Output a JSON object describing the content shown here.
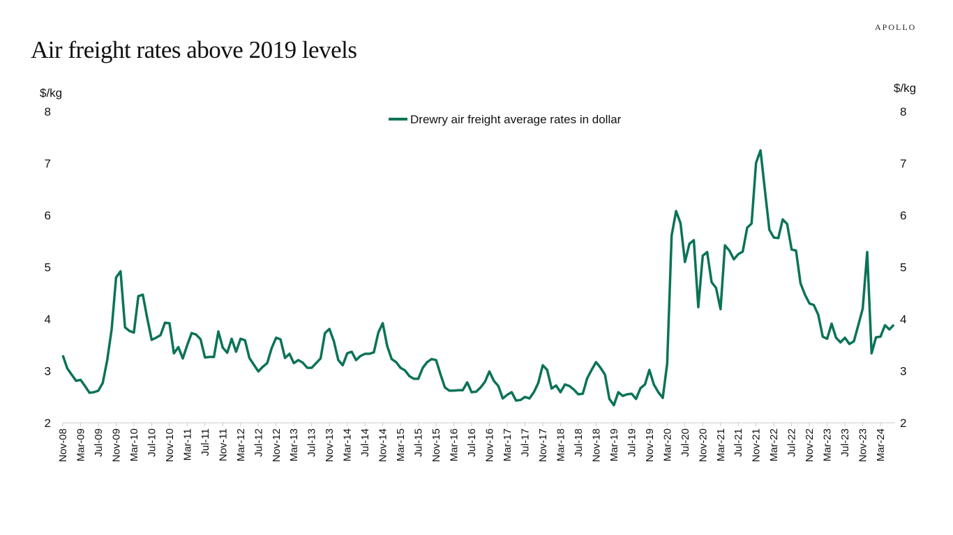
{
  "header": {
    "title": "Air freight rates above 2019 levels",
    "logo": "APOLLO"
  },
  "chart_data": {
    "type": "line",
    "title": "Air freight rates above 2019 levels",
    "ylabel_left": "$/kg",
    "ylabel_right": "$/kg",
    "ylim": [
      2,
      8
    ],
    "yticks": [
      "2",
      "3",
      "4",
      "5",
      "6",
      "7",
      "8"
    ],
    "start_month": "Nov-08",
    "end_month": "May-24",
    "frequency": "monthly",
    "x_tick_labels": [
      "Nov-08",
      "Mar-09",
      "Jul-09",
      "Nov-09",
      "Mar-10",
      "Jul-10",
      "Nov-10",
      "Mar-11",
      "Jul-11",
      "Nov-11",
      "Mar-12",
      "Jul-12",
      "Nov-12",
      "Mar-13",
      "Jul-13",
      "Nov-13",
      "Mar-14",
      "Jul-14",
      "Nov-14",
      "Mar-15",
      "Jul-15",
      "Nov-15",
      "Mar-16",
      "Jul-16",
      "Nov-16",
      "Mar-17",
      "Jul-17",
      "Nov-17",
      "Mar-18",
      "Jul-18",
      "Nov-18",
      "Mar-19",
      "Jul-19",
      "Nov-19",
      "Mar-20",
      "Jul-20",
      "Nov-20",
      "Mar-21",
      "Jul-21",
      "Nov-21",
      "Mar-22",
      "Jul-22",
      "Nov-22",
      "Mar-23",
      "Jul-23",
      "Nov-23",
      "Mar-24"
    ],
    "legend_position": "top-center",
    "series": [
      {
        "name": "Drewry air freight average rates in dollar",
        "color": "#0b7356",
        "values": [
          3.3,
          3.05,
          2.93,
          2.81,
          2.83,
          2.71,
          2.58,
          2.59,
          2.62,
          2.77,
          3.21,
          3.81,
          4.8,
          4.92,
          3.84,
          3.77,
          3.74,
          4.44,
          4.47,
          4.02,
          3.6,
          3.64,
          3.69,
          3.93,
          3.92,
          3.34,
          3.46,
          3.24,
          3.5,
          3.73,
          3.7,
          3.61,
          3.26,
          3.27,
          3.27,
          3.76,
          3.45,
          3.35,
          3.62,
          3.37,
          3.62,
          3.59,
          3.25,
          3.12,
          2.99,
          3.08,
          3.15,
          3.44,
          3.64,
          3.61,
          3.25,
          3.33,
          3.15,
          3.21,
          3.16,
          3.06,
          3.06,
          3.15,
          3.24,
          3.73,
          3.81,
          3.57,
          3.21,
          3.11,
          3.34,
          3.37,
          3.21,
          3.29,
          3.33,
          3.33,
          3.36,
          3.74,
          3.92,
          3.48,
          3.23,
          3.17,
          3.06,
          3.01,
          2.9,
          2.85,
          2.85,
          3.06,
          3.17,
          3.23,
          3.21,
          2.93,
          2.68,
          2.62,
          2.62,
          2.63,
          2.63,
          2.78,
          2.59,
          2.6,
          2.68,
          2.79,
          2.99,
          2.81,
          2.71,
          2.47,
          2.54,
          2.59,
          2.43,
          2.44,
          2.5,
          2.47,
          2.59,
          2.77,
          3.11,
          3.02,
          2.66,
          2.72,
          2.59,
          2.74,
          2.71,
          2.64,
          2.55,
          2.56,
          2.86,
          3.02,
          3.17,
          3.06,
          2.93,
          2.46,
          2.34,
          2.59,
          2.52,
          2.55,
          2.56,
          2.46,
          2.67,
          2.74,
          3.02,
          2.74,
          2.59,
          2.48,
          3.14,
          5.61,
          6.08,
          5.85,
          5.1,
          5.45,
          5.52,
          4.23,
          5.22,
          5.29,
          4.71,
          4.6,
          4.19,
          5.42,
          5.32,
          5.15,
          5.25,
          5.3,
          5.76,
          5.84,
          7.01,
          7.25,
          6.47,
          5.72,
          5.57,
          5.56,
          5.92,
          5.83,
          5.34,
          5.32,
          4.69,
          4.47,
          4.3,
          4.27,
          4.08,
          3.66,
          3.62,
          3.91,
          3.64,
          3.55,
          3.64,
          3.52,
          3.57,
          3.88,
          4.2,
          5.29,
          3.34,
          3.65,
          3.66,
          3.88,
          3.8,
          3.89
        ]
      }
    ]
  }
}
